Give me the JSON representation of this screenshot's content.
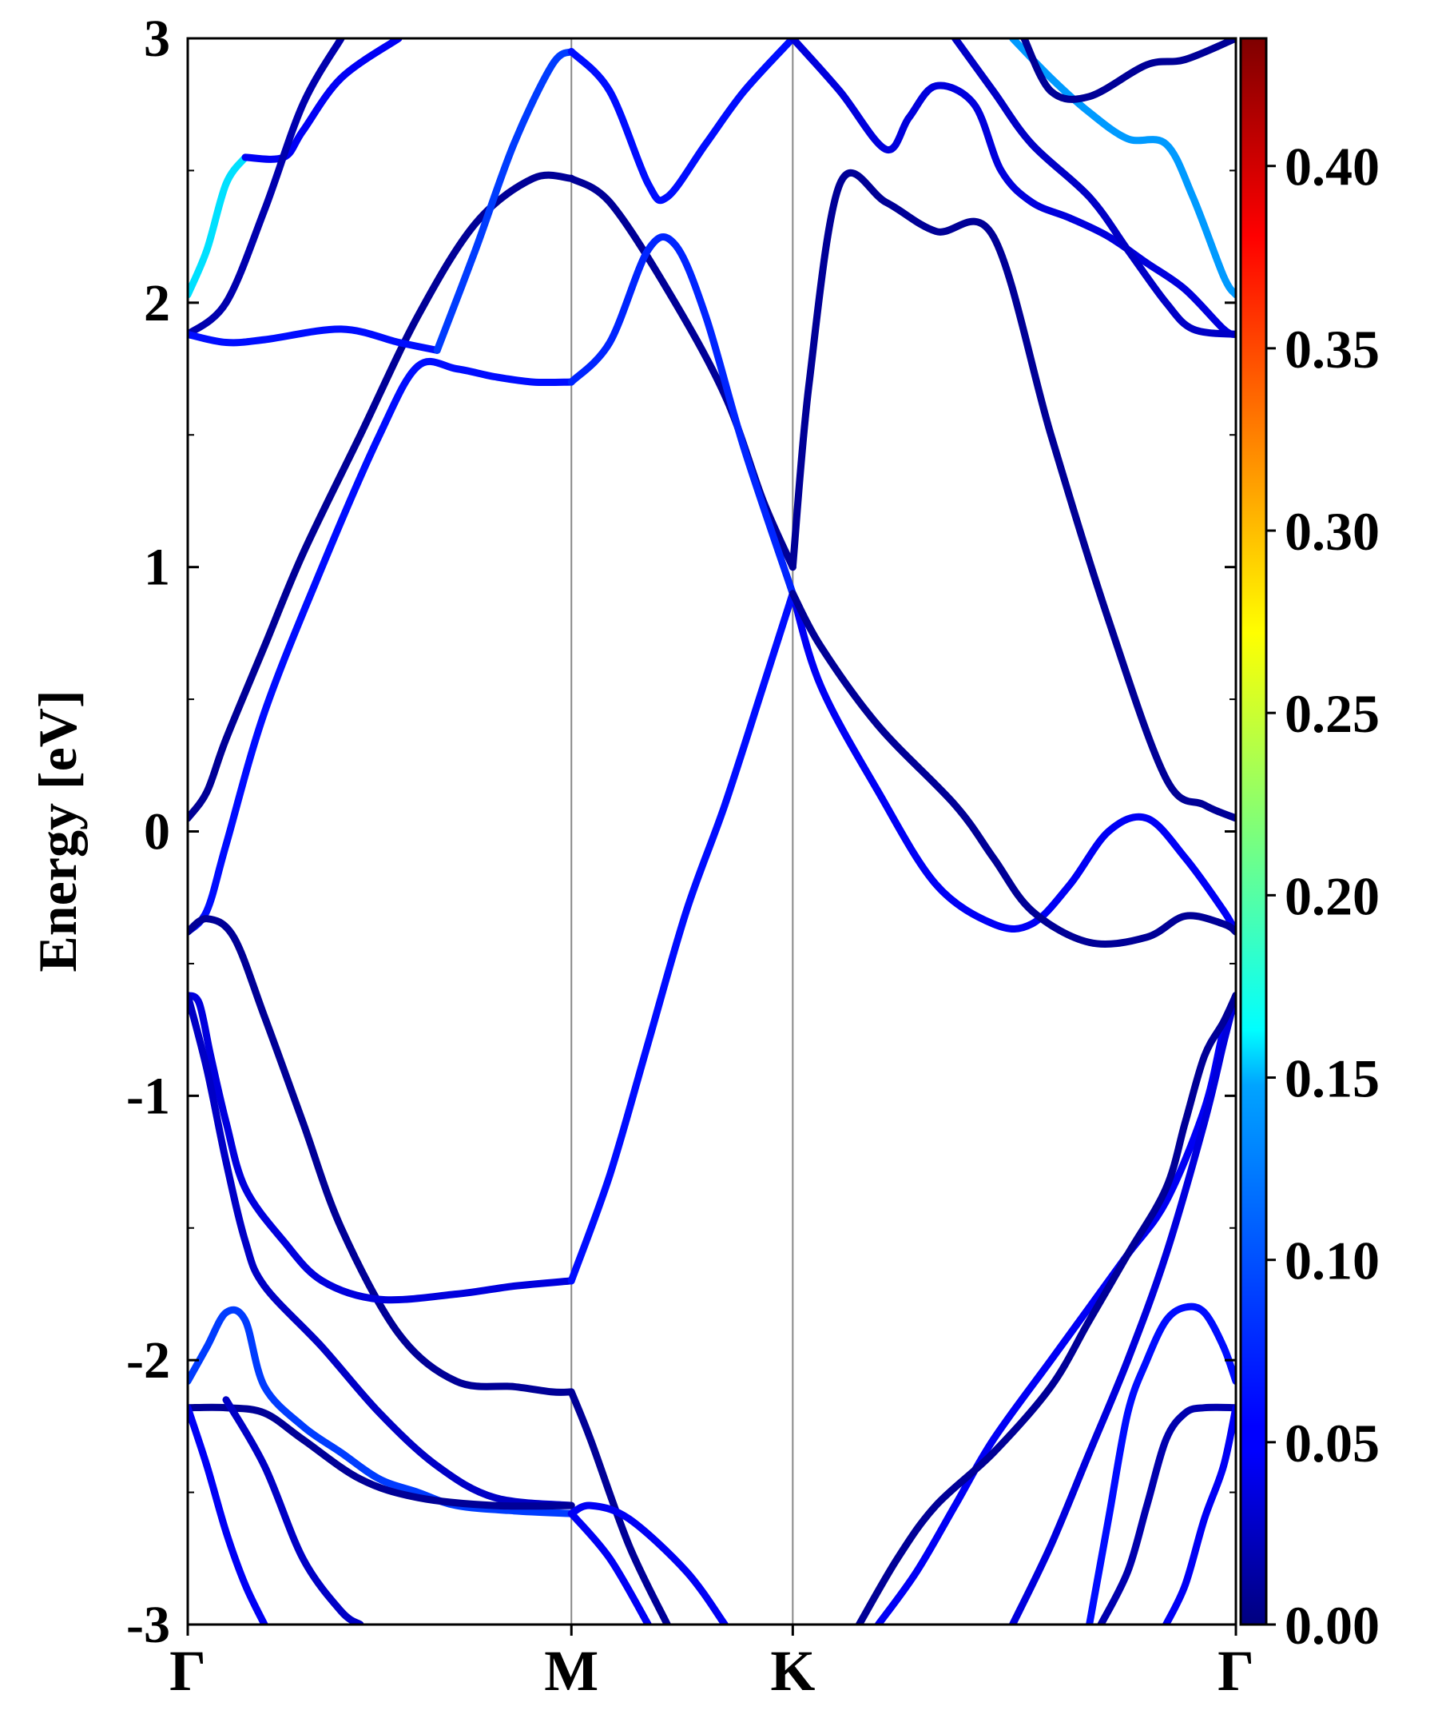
{
  "chart_data": {
    "type": "line",
    "title": "",
    "xlabel": "",
    "ylabel": "Energy [eV]",
    "ylim": [
      -3,
      3
    ],
    "y_ticks": [
      "-3",
      "-2",
      "-1",
      "0",
      "1",
      "2",
      "3"
    ],
    "k_points": [
      {
        "label": "Γ",
        "x": 0
      },
      {
        "label": "M",
        "x": 1
      },
      {
        "label": "K",
        "x": 1.577
      },
      {
        "label": "Γ",
        "x": 2.732
      }
    ],
    "colorbar": {
      "colormap": "jet",
      "range": [
        0,
        0.435
      ],
      "ticks": [
        "0.00",
        "0.05",
        "0.10",
        "0.15",
        "0.20",
        "0.25",
        "0.30",
        "0.35",
        "0.40"
      ]
    },
    "bands": [
      {
        "x": [
          0,
          0.05,
          0.1,
          0.2,
          0.3,
          0.45,
          0.6,
          0.75,
          0.9,
          1.0
        ],
        "y": [
          0.05,
          0.15,
          0.35,
          0.7,
          1.05,
          1.5,
          1.95,
          2.3,
          2.47,
          2.47
        ],
        "weight": 0.01
      },
      {
        "x": [
          1.0,
          1.1,
          1.25,
          1.4,
          1.5,
          1.577
        ],
        "y": [
          2.47,
          2.38,
          2.05,
          1.65,
          1.25,
          1.0
        ],
        "weight": 0.01
      },
      {
        "x": [
          1.577,
          1.62,
          1.7,
          1.82,
          1.95,
          2.1,
          2.25,
          2.4,
          2.55,
          2.65,
          2.732
        ],
        "y": [
          1.0,
          1.7,
          2.45,
          2.38,
          2.27,
          2.25,
          1.5,
          0.8,
          0.2,
          0.1,
          0.05
        ],
        "weight": 0.01
      },
      {
        "x": [
          0,
          0.05,
          0.1,
          0.2,
          0.35,
          0.5,
          0.6,
          0.7,
          0.8,
          0.9,
          1.0
        ],
        "y": [
          -0.38,
          -0.3,
          -0.05,
          0.45,
          1.0,
          1.5,
          1.76,
          1.75,
          1.72,
          1.7,
          1.7
        ],
        "weight": 0.06
      },
      {
        "x": [
          1.0,
          1.1,
          1.2,
          1.27,
          1.35,
          1.45,
          1.577
        ],
        "y": [
          1.7,
          1.85,
          2.2,
          2.22,
          1.95,
          1.45,
          0.9
        ],
        "weight": 0.07
      },
      {
        "x": [
          1.577,
          1.65,
          1.8,
          1.95,
          2.1,
          2.2,
          2.3,
          2.4,
          2.5,
          2.6,
          2.7,
          2.732
        ],
        "y": [
          0.9,
          0.55,
          0.15,
          -0.2,
          -0.35,
          -0.35,
          -0.2,
          0.0,
          0.05,
          -0.1,
          -0.3,
          -0.38
        ],
        "weight": 0.05
      },
      {
        "x": [
          0,
          0.05,
          0.12,
          0.2,
          0.3,
          0.4,
          0.55,
          0.7,
          0.85,
          0.95,
          1.0
        ],
        "y": [
          -0.38,
          -0.33,
          -0.4,
          -0.7,
          -1.1,
          -1.5,
          -1.9,
          -2.08,
          -2.1,
          -2.12,
          -2.12
        ],
        "weight": 0.01
      },
      {
        "x": [
          0,
          0.03,
          0.06,
          0.1,
          0.15,
          0.25,
          0.35,
          0.5,
          0.7,
          0.85,
          1.0
        ],
        "y": [
          -0.62,
          -0.65,
          -0.85,
          -1.1,
          -1.35,
          -1.55,
          -1.7,
          -1.77,
          -1.75,
          -1.72,
          -1.7
        ],
        "weight": 0.04
      },
      {
        "x": [
          1.0,
          1.1,
          1.2,
          1.3,
          1.4,
          1.5,
          1.577
        ],
        "y": [
          -1.7,
          -1.3,
          -0.8,
          -0.3,
          0.1,
          0.55,
          0.9
        ],
        "weight": 0.06
      },
      {
        "x": [
          1.577,
          1.65,
          1.8,
          2.0,
          2.1,
          2.2,
          2.35,
          2.5,
          2.6,
          2.7,
          2.732
        ],
        "y": [
          0.9,
          0.7,
          0.4,
          0.1,
          -0.1,
          -0.3,
          -0.42,
          -0.4,
          -0.32,
          -0.35,
          -0.38
        ],
        "weight": 0.01
      },
      {
        "x": [
          0,
          0.05,
          0.1,
          0.15,
          0.2,
          0.35,
          0.5,
          0.65,
          0.8,
          1.0
        ],
        "y": [
          -0.62,
          -0.9,
          -1.25,
          -1.55,
          -1.72,
          -1.95,
          -2.2,
          -2.4,
          -2.52,
          -2.55
        ],
        "weight": 0.03
      },
      {
        "x": [
          0,
          0.05,
          0.1,
          0.15,
          0.2,
          0.3,
          0.4,
          0.5,
          0.6,
          0.7,
          0.85,
          1.0
        ],
        "y": [
          -2.08,
          -1.95,
          -1.82,
          -1.85,
          -2.1,
          -2.25,
          -2.35,
          -2.45,
          -2.5,
          -2.55,
          -2.57,
          -2.58
        ],
        "weight": 0.08
      },
      {
        "x": [
          0,
          0.1,
          0.2,
          0.3,
          0.45,
          0.6,
          0.8,
          1.0
        ],
        "y": [
          -2.18,
          -2.18,
          -2.2,
          -2.3,
          -2.45,
          -2.52,
          -2.55,
          -2.55
        ],
        "weight": 0.01
      },
      {
        "x": [
          1.0,
          1.05,
          1.15,
          1.25
        ],
        "y": [
          -2.12,
          -2.3,
          -2.7,
          -3.0
        ],
        "weight": 0.01
      },
      {
        "x": [
          1.0,
          1.05,
          1.15,
          1.3,
          1.4
        ],
        "y": [
          -2.58,
          -2.55,
          -2.6,
          -2.8,
          -3.0
        ],
        "weight": 0.05
      },
      {
        "x": [
          1.0,
          1.1,
          1.2
        ],
        "y": [
          -2.58,
          -2.75,
          -3.0
        ],
        "weight": 0.05
      },
      {
        "x": [
          0,
          0.05,
          0.1,
          0.15,
          0.2
        ],
        "y": [
          -2.18,
          -2.4,
          -2.65,
          -2.85,
          -3.0
        ],
        "weight": 0.05
      },
      {
        "x": [
          0.1,
          0.2,
          0.3,
          0.4,
          0.45
        ],
        "y": [
          -2.15,
          -2.4,
          -2.75,
          -2.95,
          -3.0
        ],
        "weight": 0.03
      },
      {
        "x": [
          0,
          0.05,
          0.1,
          0.15
        ],
        "y": [
          2.03,
          2.2,
          2.45,
          2.55
        ],
        "weight": 0.15
      },
      {
        "x": [
          0.15,
          0.25,
          0.3,
          0.4,
          0.55
        ],
        "y": [
          2.55,
          2.55,
          2.65,
          2.85,
          3.0
        ],
        "weight": 0.05
      },
      {
        "x": [
          0,
          0.1,
          0.2,
          0.3,
          0.4
        ],
        "y": [
          1.88,
          2.0,
          2.35,
          2.75,
          3.0
        ],
        "weight": 0.02
      },
      {
        "x": [
          0,
          0.1,
          0.2,
          0.4,
          0.55,
          0.65
        ],
        "y": [
          1.88,
          1.85,
          1.86,
          1.9,
          1.85,
          1.82
        ],
        "weight": 0.06
      },
      {
        "x": [
          0.65,
          0.75,
          0.85,
          0.95,
          1.0
        ],
        "y": [
          1.82,
          2.2,
          2.6,
          2.9,
          2.95
        ],
        "weight": 0.08
      },
      {
        "x": [
          1.0,
          1.1,
          1.2,
          1.25,
          1.35,
          1.45,
          1.577
        ],
        "y": [
          2.95,
          2.8,
          2.45,
          2.4,
          2.6,
          2.8,
          3.0
        ],
        "weight": 0.06
      },
      {
        "x": [
          1.577,
          1.7,
          1.82,
          1.88,
          1.95,
          2.05,
          2.12,
          2.2,
          2.3,
          2.4,
          2.5,
          2.6,
          2.7,
          2.732
        ],
        "y": [
          3.0,
          2.8,
          2.58,
          2.7,
          2.82,
          2.75,
          2.5,
          2.38,
          2.32,
          2.25,
          2.15,
          2.05,
          1.9,
          1.88
        ],
        "weight": 0.04
      },
      {
        "x": [
          2.0,
          2.1,
          2.2,
          2.35,
          2.45,
          2.55,
          2.62,
          2.732
        ],
        "y": [
          3.0,
          2.8,
          2.6,
          2.4,
          2.2,
          2.0,
          1.9,
          1.88
        ],
        "weight": 0.03
      },
      {
        "x": [
          2.15,
          2.25,
          2.35,
          2.45,
          2.55,
          2.62,
          2.7,
          2.732
        ],
        "y": [
          3.0,
          2.85,
          2.72,
          2.62,
          2.6,
          2.4,
          2.1,
          2.03
        ],
        "weight": 0.12
      },
      {
        "x": [
          2.18,
          2.25,
          2.35,
          2.5,
          2.6,
          2.732
        ],
        "y": [
          3.0,
          2.8,
          2.78,
          2.9,
          2.92,
          3.0
        ],
        "weight": 0.01
      },
      {
        "x": [
          2.732,
          2.7,
          2.65,
          2.55,
          2.45,
          2.35,
          2.25,
          2.1,
          2.0,
          1.9,
          1.8
        ],
        "y": [
          -0.62,
          -0.75,
          -1.05,
          -1.4,
          -1.6,
          -1.8,
          -2.0,
          -2.3,
          -2.55,
          -2.8,
          -3.0
        ],
        "weight": 0.05
      },
      {
        "x": [
          2.732,
          2.7,
          2.65,
          2.55,
          2.45,
          2.35,
          2.25,
          2.15
        ],
        "y": [
          -0.62,
          -0.8,
          -1.1,
          -1.6,
          -2.0,
          -2.35,
          -2.7,
          -3.0
        ],
        "weight": 0.04
      },
      {
        "x": [
          2.732,
          2.7,
          2.65,
          2.6,
          2.55,
          2.45,
          2.35,
          2.25,
          2.1,
          1.95,
          1.85,
          1.75
        ],
        "y": [
          -0.62,
          -0.72,
          -0.85,
          -1.1,
          -1.35,
          -1.6,
          -1.85,
          -2.1,
          -2.35,
          -2.55,
          -2.75,
          -3.0
        ],
        "weight": 0.01
      },
      {
        "x": [
          2.732,
          2.7,
          2.65,
          2.6,
          2.55,
          2.5,
          2.45,
          2.4,
          2.35
        ],
        "y": [
          -2.08,
          -1.95,
          -1.82,
          -1.8,
          -1.85,
          -2.0,
          -2.2,
          -2.6,
          -3.0
        ],
        "weight": 0.06
      },
      {
        "x": [
          2.732,
          2.65,
          2.6,
          2.55,
          2.5,
          2.45,
          2.38
        ],
        "y": [
          -2.18,
          -2.18,
          -2.2,
          -2.3,
          -2.55,
          -2.8,
          -3.0
        ],
        "weight": 0.02
      },
      {
        "x": [
          2.732,
          2.7,
          2.65,
          2.6,
          2.55
        ],
        "y": [
          -2.18,
          -2.4,
          -2.6,
          -2.85,
          -3.0
        ],
        "weight": 0.05
      }
    ]
  }
}
